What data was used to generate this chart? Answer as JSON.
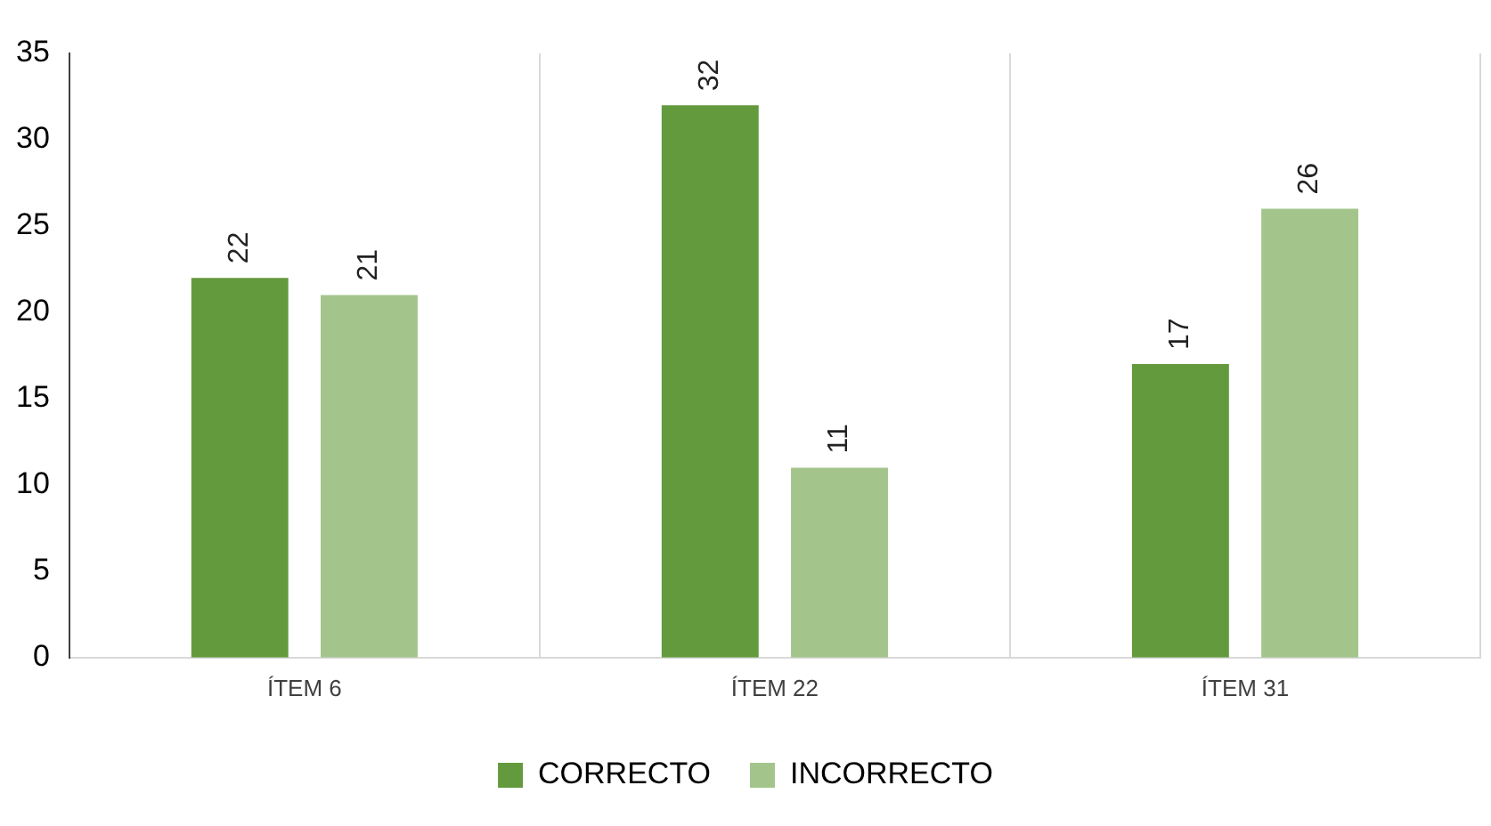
{
  "chart_data": {
    "type": "bar",
    "categories": [
      "ÍTEM 6",
      "ÍTEM 22",
      "ÍTEM 31"
    ],
    "series": [
      {
        "name": "CORRECTO",
        "color": "#639a3e",
        "values": [
          22,
          32,
          17
        ]
      },
      {
        "name": "INCORRECTO",
        "color": "#a3c58b",
        "values": [
          21,
          11,
          26
        ]
      }
    ],
    "ylim": [
      0,
      35
    ],
    "yticks": [
      0,
      5,
      10,
      15,
      20,
      25,
      30,
      35
    ],
    "grid": "x",
    "legend": "bottom",
    "data_labels": true
  }
}
